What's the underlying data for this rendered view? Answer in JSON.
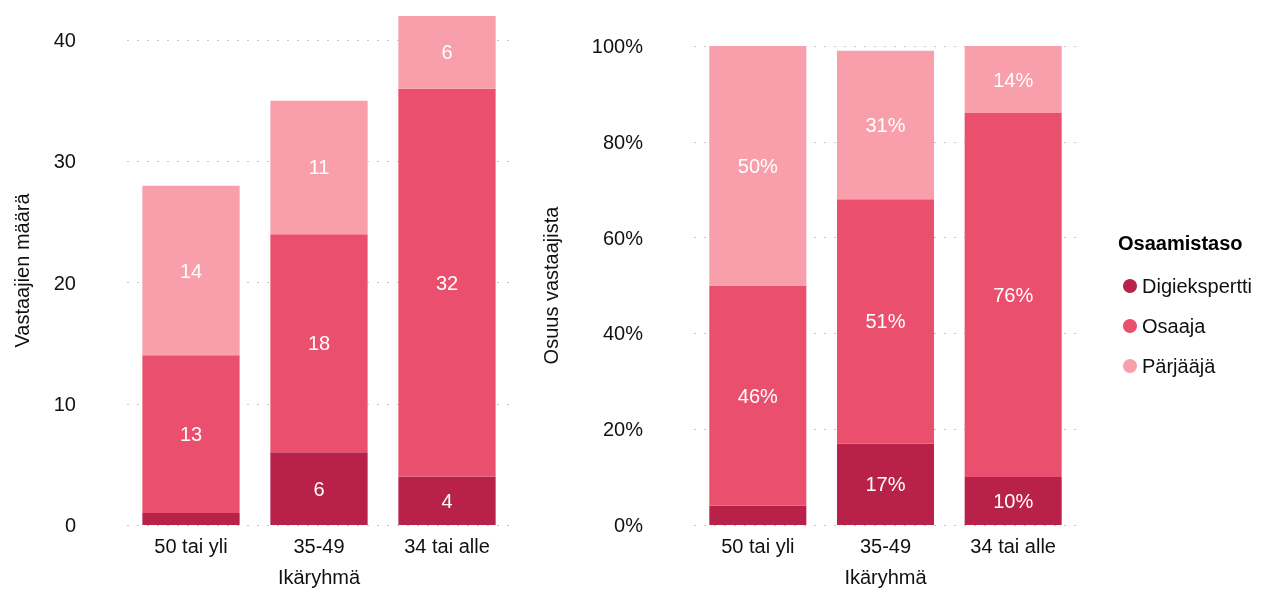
{
  "chart_data": [
    {
      "type": "bar",
      "stacked": true,
      "categories": [
        "50 tai yli",
        "35-49",
        "34 tai alle"
      ],
      "xlabel": "Ikäryhmä",
      "ylabel": "Vastaajien määrä",
      "ylim": [
        0,
        42
      ],
      "yticks": [
        0,
        10,
        20,
        30,
        40
      ],
      "grid": "y",
      "series": [
        {
          "color": "#b92248",
          "values": [
            1,
            6,
            4
          ],
          "value_labels": [
            null,
            "6",
            "4"
          ]
        },
        {
          "color": "#ea4f6e",
          "values": [
            13,
            18,
            32
          ],
          "value_labels": [
            "13",
            "18",
            "32"
          ]
        },
        {
          "color": "#f99eab",
          "values": [
            14,
            11,
            6
          ],
          "value_labels": [
            "14",
            "11",
            "6"
          ]
        }
      ]
    },
    {
      "type": "bar",
      "stacked": true,
      "categories": [
        "50 tai yli",
        "35-49",
        "34 tai alle"
      ],
      "xlabel": "Ikäryhmä",
      "ylabel": "Osuus vastaajista",
      "ylim": [
        0,
        100
      ],
      "yticks": [
        {
          "value": 0,
          "label": "0%"
        },
        {
          "value": 20,
          "label": "20%"
        },
        {
          "value": 40,
          "label": "40%"
        },
        {
          "value": 60,
          "label": "60%"
        },
        {
          "value": 80,
          "label": "80%"
        },
        {
          "value": 100,
          "label": "100%"
        }
      ],
      "grid": "y",
      "legend": "right",
      "legend_title": "Osaamistaso",
      "series": [
        {
          "name": "Digiekspertti",
          "color": "#b92248",
          "values": [
            4,
            17,
            10
          ],
          "value_labels": [
            null,
            "17%",
            "10%"
          ]
        },
        {
          "name": "Osaaja",
          "color": "#ea4f6e",
          "values": [
            46,
            51,
            76
          ],
          "value_labels": [
            "46%",
            "51%",
            "76%"
          ]
        },
        {
          "name": "Pärjääjä",
          "color": "#f99eab",
          "values": [
            50,
            31,
            14
          ],
          "value_labels": [
            "50%",
            "31%",
            "14%"
          ]
        }
      ]
    }
  ]
}
